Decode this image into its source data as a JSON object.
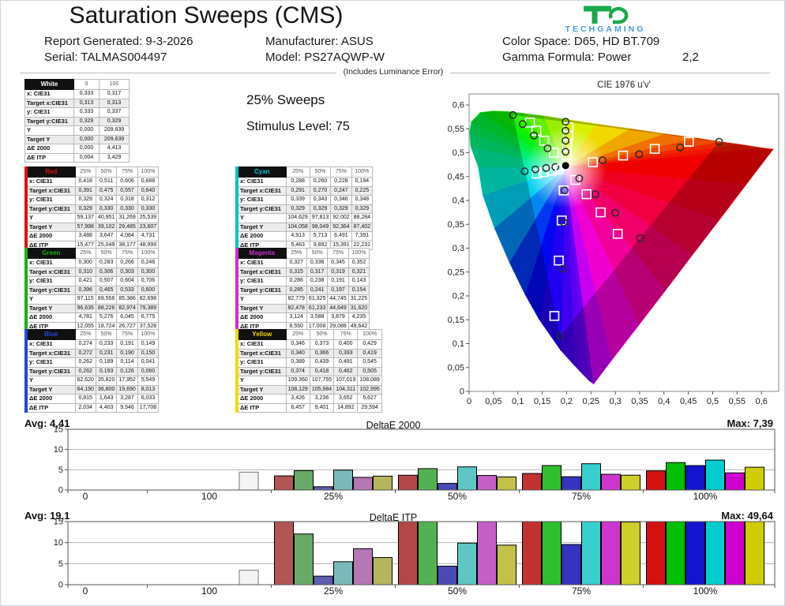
{
  "header": {
    "title": "Saturation Sweeps (CMS)",
    "info": {
      "report_generated": "Report Generated: 9-3-2026",
      "serial": "Serial: TALMAS004497",
      "manufacturer": "Manufacturer: ASUS",
      "model": "Model: PS27AQWP-W",
      "color_space": "Color Space: D65, HD BT.709",
      "gamma_formula": "Gamma Formula: Power",
      "gamma_value": "2,2"
    },
    "logo": {
      "brand": "TECHGAMING",
      "mark_green": "#1ba94c",
      "text_blue": "#4a9ad5"
    }
  },
  "divider_note": "(Includes Luminance Error)",
  "center_panel": {
    "sweeps_label": "25% Sweeps",
    "stimulus_label": "Stimulus Level: 75"
  },
  "tables": {
    "row_labels": [
      "x: CIE31",
      "Target x:CIE31",
      "y: CIE31",
      "Target y:CIE31",
      "Y",
      "Target Y",
      "ΔE 2000",
      "ΔE ITP"
    ],
    "white": {
      "name": "White",
      "accent": "#ffffff",
      "columns": [
        "0",
        "100"
      ],
      "rows": [
        [
          "0,333",
          "0,317"
        ],
        [
          "0,313",
          "0,313"
        ],
        [
          "0,333",
          "0,337"
        ],
        [
          "0,329",
          "0,329"
        ],
        [
          "0,000",
          "209,639"
        ],
        [
          "0,000",
          "209,639"
        ],
        [
          "0,000",
          "4,413"
        ],
        [
          "0,004",
          "3,429"
        ]
      ]
    },
    "red": {
      "name": "Red",
      "accent": "#e01010",
      "columns": [
        "25%",
        "50%",
        "75%",
        "100%"
      ],
      "rows": [
        [
          "0,418",
          "0,511",
          "0,606",
          "0,688"
        ],
        [
          "0,391",
          "0,475",
          "0,557",
          "0,640"
        ],
        [
          "0,329",
          "0,324",
          "0,318",
          "0,312"
        ],
        [
          "0,329",
          "0,330",
          "0,330",
          "0,330"
        ],
        [
          "59,137",
          "40,951",
          "31,269",
          "25,539"
        ],
        [
          "57,998",
          "39,102",
          "29,485",
          "23,607"
        ],
        [
          "3,488",
          "3,647",
          "4,084",
          "4,731"
        ],
        [
          "15,477",
          "25,049",
          "38,177",
          "48,999"
        ]
      ]
    },
    "green": {
      "name": "Green",
      "accent": "#17b117",
      "columns": [
        "25%",
        "50%",
        "75%",
        "100%"
      ],
      "rows": [
        [
          "0,300",
          "0,283",
          "0,266",
          "0,246"
        ],
        [
          "0,310",
          "0,306",
          "0,303",
          "0,300"
        ],
        [
          "0,421",
          "0,507",
          "0,604",
          "0,706"
        ],
        [
          "0,396",
          "0,465",
          "0,533",
          "0,600"
        ],
        [
          "97,115",
          "89,556",
          "85,386",
          "82,698"
        ],
        [
          "96,635",
          "88,226",
          "82,974",
          "79,389"
        ],
        [
          "4,781",
          "5,276",
          "6,045",
          "6,775"
        ],
        [
          "12,055",
          "18,724",
          "26,727",
          "37,528"
        ]
      ]
    },
    "blue": {
      "name": "Blue",
      "accent": "#2446d8",
      "columns": [
        "25%",
        "50%",
        "75%",
        "100%"
      ],
      "rows": [
        [
          "0,274",
          "0,233",
          "0,191",
          "0,149"
        ],
        [
          "0,272",
          "0,231",
          "0,190",
          "0,150"
        ],
        [
          "0,262",
          "0,189",
          "0,114",
          "0,041"
        ],
        [
          "0,262",
          "0,193",
          "0,126",
          "0,060"
        ],
        [
          "62,620",
          "35,820",
          "17,952",
          "5,549"
        ],
        [
          "64,190",
          "36,800",
          "19,690",
          "8,013"
        ],
        [
          "0,815",
          "1,643",
          "3,287",
          "6,033"
        ],
        [
          "2,034",
          "4,403",
          "9,546",
          "17,708"
        ]
      ]
    },
    "cyan": {
      "name": "Cyan",
      "accent": "#00c3cd",
      "columns": [
        "25%",
        "50%",
        "75%",
        "100%"
      ],
      "rows": [
        [
          "0,288",
          "0,260",
          "0,228",
          "0,194"
        ],
        [
          "0,291",
          "0,270",
          "0,247",
          "0,225"
        ],
        [
          "0,339",
          "0,343",
          "0,346",
          "0,348"
        ],
        [
          "0,329",
          "0,329",
          "0,329",
          "0,329"
        ],
        [
          "104,629",
          "97,813",
          "92,002",
          "88,284"
        ],
        [
          "104,058",
          "98,049",
          "92,364",
          "87,402"
        ],
        [
          "4,913",
          "5,713",
          "6,491",
          "7,391"
        ],
        [
          "5,463",
          "9,892",
          "15,391",
          "22,231"
        ]
      ]
    },
    "magenta": {
      "name": "Magenta",
      "accent": "#cf2fcf",
      "columns": [
        "25%",
        "50%",
        "75%",
        "100%"
      ],
      "rows": [
        [
          "0,327",
          "0,336",
          "0,345",
          "0,352"
        ],
        [
          "0,315",
          "0,317",
          "0,319",
          "0,321"
        ],
        [
          "0,286",
          "0,238",
          "0,191",
          "0,143"
        ],
        [
          "0,285",
          "0,241",
          "0,197",
          "0,154"
        ],
        [
          "82,779",
          "61,325",
          "44,745",
          "31,225"
        ],
        [
          "82,478",
          "61,233",
          "44,649",
          "31,620"
        ],
        [
          "3,124",
          "3,588",
          "3,879",
          "4,235"
        ],
        [
          "8,550",
          "17,008",
          "29,088",
          "49,642"
        ]
      ]
    },
    "yellow": {
      "name": "Yellow",
      "accent": "#f2d800",
      "columns": [
        "25%",
        "50%",
        "75%",
        "100%"
      ],
      "rows": [
        [
          "0,346",
          "0,373",
          "0,400",
          "0,429"
        ],
        [
          "0,340",
          "0,366",
          "0,393",
          "0,419"
        ],
        [
          "0,389",
          "0,439",
          "0,491",
          "0,545"
        ],
        [
          "0,374",
          "0,418",
          "0,462",
          "0,505"
        ],
        [
          "109,360",
          "107,755",
          "107,019",
          "108,089"
        ],
        [
          "108,129",
          "105,984",
          "104,311",
          "102,995"
        ],
        [
          "3,426",
          "3,236",
          "3,652",
          "5,627"
        ],
        [
          "6,457",
          "9,401",
          "14,892",
          "29,594"
        ]
      ]
    }
  },
  "chart_data": [
    {
      "type": "scatter",
      "title": "CIE 1976 u'v'",
      "xlabel": "u'",
      "ylabel": "v'",
      "xlim": [
        0,
        0.635
      ],
      "ylim": [
        0,
        0.623
      ],
      "x_ticks": [
        "0",
        "0,05",
        "0,1",
        "0,15",
        "0,2",
        "0,25",
        "0,3",
        "0,35",
        "0,4",
        "0,45",
        "0,5",
        "0,55",
        "0,6"
      ],
      "y_ticks": [
        "0",
        "0,05",
        "0,1",
        "0,15",
        "0,2",
        "0,25",
        "0,3",
        "0,35",
        "0,4",
        "0,45",
        "0,5",
        "0,55",
        "0,6"
      ],
      "white_measured": [
        0.198,
        0.473
      ],
      "white_target": [
        0.198,
        0.468
      ],
      "native_triangle": [
        [
          0.513,
          0.523
        ],
        [
          0.09,
          0.579
        ],
        [
          0.187,
          0.116
        ]
      ],
      "series": [
        {
          "name": "Red measured",
          "kind": "measured",
          "points": [
            [
              0.274,
              0.484
            ],
            [
              0.349,
              0.497
            ],
            [
              0.433,
              0.511
            ],
            [
              0.513,
              0.523
            ]
          ]
        },
        {
          "name": "Red target",
          "kind": "target",
          "points": [
            [
              0.254,
              0.48
            ],
            [
              0.316,
              0.494
            ],
            [
              0.381,
              0.508
            ],
            [
              0.451,
              0.523
            ]
          ]
        },
        {
          "name": "Green measured",
          "kind": "measured",
          "points": [
            [
              0.161,
              0.509
            ],
            [
              0.133,
              0.536
            ],
            [
              0.11,
              0.56
            ],
            [
              0.09,
              0.579
            ]
          ]
        },
        {
          "name": "Green target",
          "kind": "target",
          "points": [
            [
              0.174,
              0.5
            ],
            [
              0.154,
              0.525
            ],
            [
              0.138,
              0.546
            ],
            [
              0.125,
              0.563
            ]
          ]
        },
        {
          "name": "Blue measured",
          "kind": "measured",
          "points": [
            [
              0.196,
              0.421
            ],
            [
              0.194,
              0.354
            ],
            [
              0.192,
              0.257
            ],
            [
              0.187,
              0.116
            ]
          ]
        },
        {
          "name": "Blue target",
          "kind": "target",
          "points": [
            [
              0.194,
              0.421
            ],
            [
              0.19,
              0.358
            ],
            [
              0.184,
              0.274
            ],
            [
              0.175,
              0.158
            ]
          ]
        },
        {
          "name": "Cyan measured",
          "kind": "measured",
          "points": [
            [
              0.177,
              0.47
            ],
            [
              0.158,
              0.468
            ],
            [
              0.136,
              0.465
            ],
            [
              0.114,
              0.461
            ]
          ]
        },
        {
          "name": "Cyan target",
          "kind": "target",
          "points": [
            [
              0.183,
              0.465
            ],
            [
              0.169,
              0.462
            ],
            [
              0.153,
              0.459
            ],
            [
              0.139,
              0.456
            ]
          ]
        },
        {
          "name": "Magenta measured",
          "kind": "measured",
          "points": [
            [
              0.226,
              0.446
            ],
            [
              0.259,
              0.413
            ],
            [
              0.3,
              0.374
            ],
            [
              0.351,
              0.321
            ]
          ]
        },
        {
          "name": "Magenta target",
          "kind": "target",
          "points": [
            [
              0.218,
              0.443
            ],
            [
              0.241,
              0.413
            ],
            [
              0.27,
              0.375
            ],
            [
              0.305,
              0.33
            ]
          ]
        },
        {
          "name": "Yellow measured",
          "kind": "measured",
          "points": [
            [
              0.198,
              0.502
            ],
            [
              0.198,
              0.525
            ],
            [
              0.198,
              0.546
            ],
            [
              0.198,
              0.565
            ]
          ]
        },
        {
          "name": "Yellow target",
          "kind": "target",
          "points": [
            [
              0.2,
              0.494
            ],
            [
              0.201,
              0.517
            ],
            [
              0.203,
              0.536
            ],
            [
              0.204,
              0.553
            ]
          ]
        }
      ]
    },
    {
      "type": "bar",
      "title": "DeltaE 2000",
      "avg_label": "Avg: 4,41",
      "max_label": "Max: 7,39",
      "categories": [
        "0",
        "100",
        "25%",
        "50%",
        "75%",
        "100%"
      ],
      "ylim": [
        0,
        15
      ],
      "y_ticks": [
        0,
        5,
        10,
        15
      ],
      "white_bar": {
        "category": "100",
        "value": 4.413,
        "color": "#f4f4f4"
      },
      "series": [
        {
          "name": "Red",
          "values": [
            3.488,
            3.647,
            4.084,
            4.731
          ],
          "color_by_level": [
            "#b25555",
            "#b34747",
            "#c23232",
            "#d51010"
          ]
        },
        {
          "name": "Green",
          "values": [
            4.781,
            5.276,
            6.045,
            6.775
          ],
          "color_by_level": [
            "#69aa69",
            "#52b152",
            "#2ebe2e",
            "#00c000"
          ]
        },
        {
          "name": "Blue",
          "values": [
            0.815,
            1.643,
            3.287,
            6.033
          ],
          "color_by_level": [
            "#5d5db1",
            "#4a4ab4",
            "#3434c1",
            "#1414cf"
          ]
        },
        {
          "name": "Cyan",
          "values": [
            4.913,
            5.713,
            6.491,
            7.391
          ],
          "color_by_level": [
            "#7ab9b9",
            "#60c5c5",
            "#38cfcf",
            "#00cdcd"
          ]
        },
        {
          "name": "Magenta",
          "values": [
            3.124,
            3.588,
            3.879,
            4.235
          ],
          "color_by_level": [
            "#b577b5",
            "#c55fc5",
            "#cd36cd",
            "#cd00cd"
          ]
        },
        {
          "name": "Yellow",
          "values": [
            3.426,
            3.236,
            3.652,
            5.627
          ],
          "color_by_level": [
            "#b5b55e",
            "#c2c24a",
            "#cfcf2a",
            "#cdcd00"
          ]
        }
      ]
    },
    {
      "type": "bar",
      "title": "DeltaE ITP",
      "avg_label": "Avg: 19,1",
      "max_label": "Max: 49,64",
      "categories": [
        "0",
        "100",
        "25%",
        "50%",
        "75%",
        "100%"
      ],
      "ylim": [
        0,
        15
      ],
      "y_ticks": [
        0,
        5,
        10,
        15
      ],
      "white_bar": {
        "category": "100",
        "value": 3.429,
        "color": "#f4f4f4"
      },
      "series": [
        {
          "name": "Red",
          "values": [
            15.477,
            25.049,
            38.177,
            48.999
          ],
          "color_by_level": [
            "#b25555",
            "#b34747",
            "#c23232",
            "#d51010"
          ]
        },
        {
          "name": "Green",
          "values": [
            12.055,
            18.724,
            26.727,
            37.528
          ],
          "color_by_level": [
            "#69aa69",
            "#52b152",
            "#2ebe2e",
            "#00c000"
          ]
        },
        {
          "name": "Blue",
          "values": [
            2.034,
            4.403,
            9.546,
            17.708
          ],
          "color_by_level": [
            "#5d5db1",
            "#4a4ab4",
            "#3434c1",
            "#1414cf"
          ]
        },
        {
          "name": "Cyan",
          "values": [
            5.463,
            9.892,
            15.391,
            22.231
          ],
          "color_by_level": [
            "#7ab9b9",
            "#60c5c5",
            "#38cfcf",
            "#00cdcd"
          ]
        },
        {
          "name": "Magenta",
          "values": [
            8.55,
            17.008,
            29.088,
            49.642
          ],
          "color_by_level": [
            "#b577b5",
            "#c55fc5",
            "#cd36cd",
            "#cd00cd"
          ]
        },
        {
          "name": "Yellow",
          "values": [
            6.457,
            9.401,
            14.892,
            29.594
          ],
          "color_by_level": [
            "#b5b55e",
            "#c2c24a",
            "#cfcf2a",
            "#cdcd00"
          ]
        }
      ]
    }
  ]
}
